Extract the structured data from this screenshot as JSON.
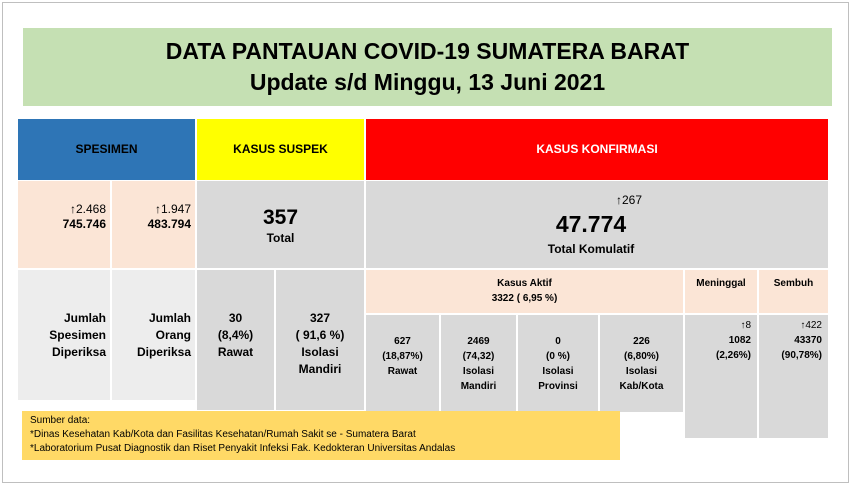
{
  "header": {
    "title": "DATA PANTAUAN COVID-19 SUMATERA BARAT",
    "subtitle": "Update s/d Minggu, 13 Juni 2021"
  },
  "spesimen": {
    "label": "SPESIMEN",
    "columns": [
      {
        "increase": "↑2.468",
        "total": "745.746",
        "label": [
          "Jumlah",
          "Spesimen",
          "Diperiksa"
        ]
      },
      {
        "increase": "↑1.947",
        "total": "483.794",
        "label": [
          "Jumlah",
          "Orang",
          "Diperiksa"
        ]
      }
    ]
  },
  "suspek": {
    "label": "KASUS SUSPEK",
    "total": "357",
    "total_label": "Total",
    "breakdown": [
      {
        "value": "30",
        "percent": "(8,4%)",
        "label": [
          "Rawat"
        ]
      },
      {
        "value": "327",
        "percent": "( 91,6 %)",
        "label": [
          "Isolasi",
          "Mandiri"
        ]
      }
    ]
  },
  "konfirmasi": {
    "label": "KASUS KONFIRMASI",
    "increase": "↑267",
    "total": "47.774",
    "total_label": "Total Komulatif",
    "aktif": {
      "label": "Kasus Aktif",
      "value": "3322 ( 6,95 %)",
      "breakdown": [
        {
          "value": "627",
          "percent": "(18,87%)",
          "label": [
            "Rawat"
          ]
        },
        {
          "value": "2469",
          "percent": "(74,32)",
          "label": [
            "Isolasi",
            "Mandiri"
          ]
        },
        {
          "value": "0",
          "percent": "(0 %)",
          "label": [
            "Isolasi",
            "Provinsi"
          ]
        },
        {
          "value": "226",
          "percent": "(6,80%)",
          "label": [
            "Isolasi",
            "Kab/Kota"
          ]
        }
      ]
    },
    "meninggal": {
      "label": "Meninggal",
      "increase": "↑8",
      "value": "1082",
      "percent": "(2,26%)"
    },
    "sembuh": {
      "label": "Sembuh",
      "increase": "↑422",
      "value": "43370",
      "percent": "(90,78%)"
    }
  },
  "source": {
    "title": "Sumber data:",
    "lines": [
      "*Dinas Kesehatan Kab/Kota  dan Fasilitas Kesehatan/Rumah Sakit se - Sumatera Barat",
      "*Laboratorium  Pusat Diagnostik dan Riset  Penyakit Infeksi Fak. Kedokteran Universitas Andalas"
    ]
  }
}
